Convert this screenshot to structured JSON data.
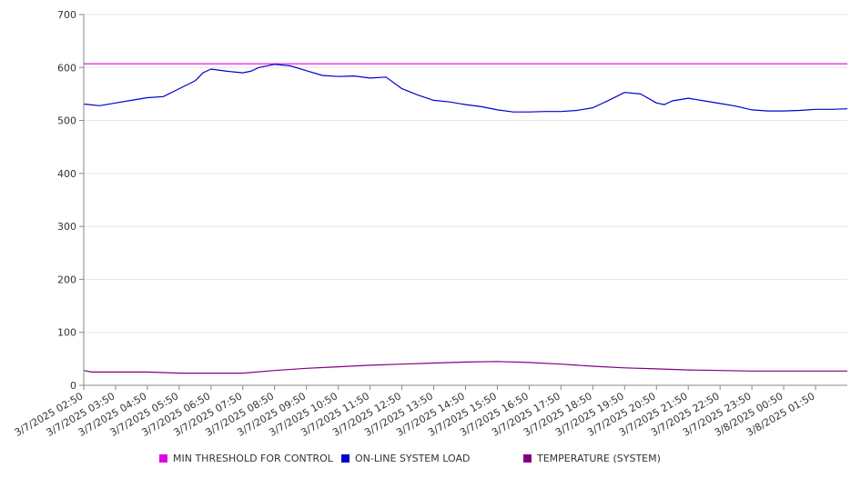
{
  "chart_data": {
    "type": "line",
    "title": "",
    "xlabel": "",
    "ylabel": "",
    "ylim": [
      0,
      700
    ],
    "y_ticks": [
      0,
      100,
      200,
      300,
      400,
      500,
      600,
      700
    ],
    "grid": true,
    "legend_position": "bottom",
    "x_start": "3/7/2025 02:50",
    "x_end": "3/8/2025 02:50",
    "x_tick_labels": [
      "3/7/2025 02:50",
      "3/7/2025 03:50",
      "3/7/2025 04:50",
      "3/7/2025 05:50",
      "3/7/2025 06:50",
      "3/7/2025 07:50",
      "3/7/2025 08:50",
      "3/7/2025 09:50",
      "3/7/2025 10:50",
      "3/7/2025 11:50",
      "3/7/2025 12:50",
      "3/7/2025 13:50",
      "3/7/2025 14:50",
      "3/7/2025 15:50",
      "3/7/2025 16:50",
      "3/7/2025 17:50",
      "3/7/2025 18:50",
      "3/7/2025 19:50",
      "3/7/2025 20:50",
      "3/7/2025 21:50",
      "3/7/2025 22:50",
      "3/7/2025 23:50",
      "3/8/2025 00:50",
      "3/8/2025 01:50"
    ],
    "series": [
      {
        "name": "MIN THRESHOLD FOR CONTROL",
        "color": "#e000e0",
        "x": [
          "3/7/2025 02:50",
          "3/8/2025 02:50"
        ],
        "y": [
          607,
          607
        ]
      },
      {
        "name": "ON-LINE SYSTEM LOAD",
        "color": "#0000cc",
        "x": [
          "3/7/2025 02:50",
          "3/7/2025 03:20",
          "3/7/2025 03:50",
          "3/7/2025 04:20",
          "3/7/2025 04:50",
          "3/7/2025 05:20",
          "3/7/2025 05:50",
          "3/7/2025 06:20",
          "3/7/2025 06:35",
          "3/7/2025 06:50",
          "3/7/2025 07:20",
          "3/7/2025 07:50",
          "3/7/2025 08:05",
          "3/7/2025 08:20",
          "3/7/2025 08:50",
          "3/7/2025 09:20",
          "3/7/2025 09:50",
          "3/7/2025 10:20",
          "3/7/2025 10:50",
          "3/7/2025 11:20",
          "3/7/2025 11:50",
          "3/7/2025 12:20",
          "3/7/2025 12:50",
          "3/7/2025 13:20",
          "3/7/2025 13:50",
          "3/7/2025 14:20",
          "3/7/2025 14:50",
          "3/7/2025 15:20",
          "3/7/2025 15:50",
          "3/7/2025 16:20",
          "3/7/2025 16:50",
          "3/7/2025 17:20",
          "3/7/2025 17:50",
          "3/7/2025 18:20",
          "3/7/2025 18:50",
          "3/7/2025 19:05",
          "3/7/2025 19:20",
          "3/7/2025 19:50",
          "3/7/2025 20:20",
          "3/7/2025 20:50",
          "3/7/2025 21:05",
          "3/7/2025 21:20",
          "3/7/2025 21:50",
          "3/7/2025 22:20",
          "3/7/2025 22:50",
          "3/7/2025 23:20",
          "3/7/2025 23:50",
          "3/8/2025 00:20",
          "3/8/2025 00:50",
          "3/8/2025 01:20",
          "3/8/2025 01:50",
          "3/8/2025 02:20",
          "3/8/2025 02:50"
        ],
        "y": [
          531,
          528,
          533,
          538,
          543,
          545,
          560,
          575,
          590,
          597,
          593,
          590,
          593,
          600,
          606,
          603,
          594,
          585,
          583,
          584,
          580,
          582,
          560,
          548,
          538,
          535,
          530,
          526,
          520,
          516,
          516,
          517,
          517,
          519,
          524,
          531,
          538,
          553,
          550,
          533,
          530,
          537,
          542,
          537,
          532,
          527,
          520,
          518,
          518,
          519,
          521,
          521,
          522
        ]
      },
      {
        "name": "TEMPERATURE (SYSTEM)",
        "color": "#800080",
        "x": [
          "3/7/2025 02:50",
          "3/7/2025 03:05",
          "3/7/2025 04:50",
          "3/7/2025 05:50",
          "3/7/2025 07:50",
          "3/7/2025 08:50",
          "3/7/2025 09:50",
          "3/7/2025 10:50",
          "3/7/2025 11:50",
          "3/7/2025 12:50",
          "3/7/2025 13:50",
          "3/7/2025 14:50",
          "3/7/2025 15:50",
          "3/7/2025 16:50",
          "3/7/2025 17:50",
          "3/7/2025 18:50",
          "3/7/2025 19:50",
          "3/7/2025 20:50",
          "3/7/2025 21:50",
          "3/7/2025 22:50",
          "3/7/2025 23:50",
          "3/8/2025 00:50",
          "3/8/2025 01:50",
          "3/8/2025 02:50"
        ],
        "y": [
          28,
          25,
          25,
          23,
          23,
          28,
          32,
          35,
          38,
          40,
          42,
          44,
          45,
          43,
          40,
          36,
          33,
          31,
          29,
          28,
          27,
          27,
          27,
          27
        ]
      }
    ]
  }
}
